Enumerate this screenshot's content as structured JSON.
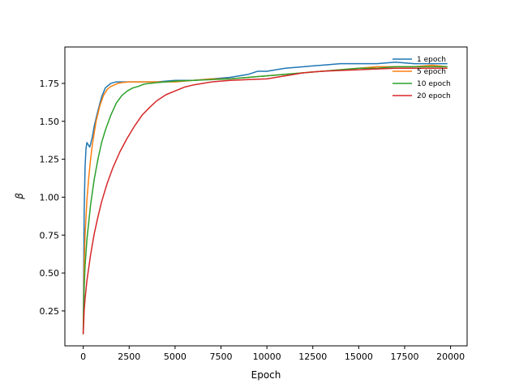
{
  "chart_data": {
    "type": "line",
    "title": "",
    "xlabel": "Epoch",
    "ylabel": "β",
    "xlim": [
      -1000,
      20900
    ],
    "ylim": [
      0.02,
      1.99
    ],
    "x_ticks": [
      0,
      2500,
      5000,
      7500,
      10000,
      12500,
      15000,
      17500,
      20000
    ],
    "x_tick_labels": [
      "0",
      "2500",
      "5000",
      "7500",
      "10000",
      "12500",
      "15000",
      "17500",
      "20000"
    ],
    "y_ticks": [
      0.25,
      0.5,
      0.75,
      1.0,
      1.25,
      1.5,
      1.75
    ],
    "y_tick_labels": [
      "0.25",
      "0.50",
      "0.75",
      "1.00",
      "1.25",
      "1.50",
      "1.75"
    ],
    "grid": false,
    "legend_position": "top-right",
    "series": [
      {
        "name": "1 epoch",
        "color": "#1f77b4",
        "x": [
          0,
          50,
          100,
          150,
          200,
          250,
          300,
          350,
          400,
          500,
          600,
          800,
          1000,
          1200,
          1500,
          1800,
          2000,
          2500,
          3000,
          3500,
          4000,
          5000,
          6000,
          7000,
          8000,
          9000,
          9500,
          10000,
          11000,
          12000,
          13000,
          14000,
          15000,
          16000,
          17000,
          18000,
          19000,
          19800
        ],
        "y": [
          0.1,
          0.9,
          1.2,
          1.32,
          1.36,
          1.35,
          1.34,
          1.33,
          1.35,
          1.4,
          1.47,
          1.57,
          1.66,
          1.72,
          1.75,
          1.76,
          1.76,
          1.76,
          1.76,
          1.76,
          1.76,
          1.77,
          1.77,
          1.78,
          1.79,
          1.81,
          1.83,
          1.83,
          1.85,
          1.86,
          1.87,
          1.88,
          1.88,
          1.88,
          1.89,
          1.88,
          1.88,
          1.88
        ]
      },
      {
        "name": "5 epoch",
        "color": "#ff7f0e",
        "x": [
          0,
          50,
          100,
          200,
          300,
          400,
          500,
          700,
          900,
          1100,
          1300,
          1500,
          1700,
          1900,
          2100,
          2500,
          3000,
          4000,
          5000,
          6000,
          7000,
          8000,
          9000,
          10000,
          11000,
          12000,
          13000,
          14000,
          15000,
          16000,
          17000,
          18000,
          19000,
          19800
        ],
        "y": [
          0.1,
          0.55,
          0.75,
          0.98,
          1.13,
          1.25,
          1.35,
          1.5,
          1.6,
          1.67,
          1.71,
          1.73,
          1.74,
          1.75,
          1.755,
          1.76,
          1.76,
          1.76,
          1.76,
          1.77,
          1.78,
          1.78,
          1.79,
          1.8,
          1.81,
          1.82,
          1.83,
          1.84,
          1.85,
          1.86,
          1.86,
          1.86,
          1.87,
          1.86
        ]
      },
      {
        "name": "10 epoch",
        "color": "#2ca02c",
        "x": [
          0,
          50,
          100,
          200,
          400,
          600,
          800,
          1000,
          1200,
          1500,
          1800,
          2100,
          2400,
          2700,
          3000,
          3300,
          3600,
          4000,
          4500,
          5000,
          6000,
          7000,
          8000,
          9000,
          10000,
          11000,
          12000,
          13000,
          14000,
          15000,
          16000,
          17000,
          18000,
          19000,
          19800
        ],
        "y": [
          0.1,
          0.4,
          0.55,
          0.72,
          0.95,
          1.12,
          1.25,
          1.36,
          1.44,
          1.54,
          1.62,
          1.67,
          1.7,
          1.72,
          1.73,
          1.745,
          1.75,
          1.755,
          1.76,
          1.765,
          1.77,
          1.775,
          1.78,
          1.79,
          1.8,
          1.81,
          1.82,
          1.83,
          1.84,
          1.85,
          1.85,
          1.86,
          1.86,
          1.86,
          1.86
        ]
      },
      {
        "name": "20 epoch",
        "color": "#d62728",
        "x": [
          0,
          50,
          100,
          200,
          400,
          600,
          800,
          1000,
          1300,
          1600,
          2000,
          2400,
          2800,
          3200,
          3600,
          4000,
          4500,
          5000,
          5500,
          6000,
          6500,
          7000,
          7500,
          8000,
          9000,
          10000,
          11000,
          12000,
          13000,
          14000,
          15000,
          16000,
          17000,
          18000,
          19000,
          19800
        ],
        "y": [
          0.1,
          0.25,
          0.33,
          0.45,
          0.62,
          0.76,
          0.87,
          0.97,
          1.09,
          1.19,
          1.3,
          1.39,
          1.47,
          1.54,
          1.59,
          1.635,
          1.675,
          1.7,
          1.725,
          1.74,
          1.75,
          1.76,
          1.765,
          1.77,
          1.775,
          1.78,
          1.8,
          1.82,
          1.83,
          1.835,
          1.84,
          1.845,
          1.85,
          1.85,
          1.85,
          1.85
        ]
      }
    ]
  }
}
